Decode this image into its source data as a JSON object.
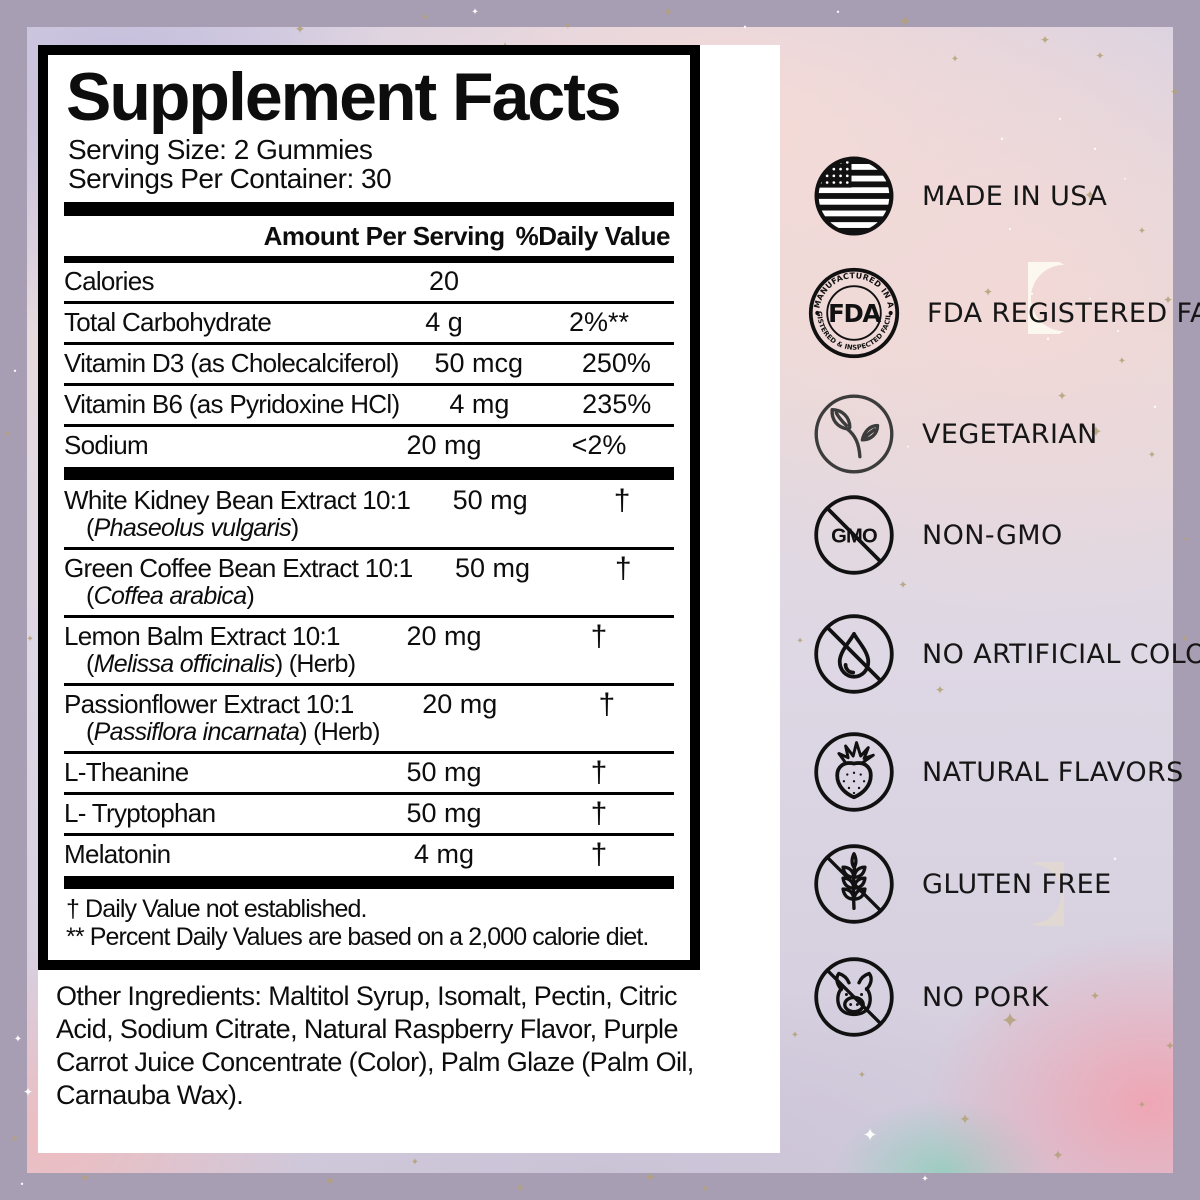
{
  "colors": {
    "frame_border": "#a89eb3",
    "background_lavender": "#d5cfdf",
    "background_pink": "#f5dcda",
    "panel_white": "#ffffff",
    "ink_black": "#0d0d0d",
    "star_gold": "#b3a179"
  },
  "facts": {
    "title": "Supplement Facts",
    "serving_size": "Serving Size: 2 Gummies",
    "servings_per_container": "Servings Per Container: 30",
    "header": {
      "amount": "Amount Per Serving",
      "daily_value": "%Daily Value"
    },
    "sections": [
      {
        "rows": [
          {
            "name": "Calories",
            "amount": "20",
            "dv": ""
          },
          {
            "name": "Total Carbohydrate",
            "amount": "4 g",
            "dv": "2%**"
          },
          {
            "name": "Vitamin D3 (as Cholecalciferol)",
            "amount": "50 mcg",
            "dv": "250%"
          },
          {
            "name": "Vitamin B6 (as Pyridoxine HCl)",
            "amount": "4 mg",
            "dv": "235%"
          },
          {
            "name": "Sodium",
            "amount": "20 mg",
            "dv": "<2%"
          }
        ]
      },
      {
        "rows": [
          {
            "name": "White Kidney Bean Extract 10:1",
            "sub": {
              "open": "(",
              "italic": "Phaseolus vulgaris",
              "close": ")",
              "suffix": ""
            },
            "amount": "50 mg",
            "dv": "†"
          },
          {
            "name": "Green Coffee Bean Extract 10:1",
            "sub": {
              "open": "(",
              "italic": "Coffea arabica",
              "close": ")",
              "suffix": ""
            },
            "amount": "50 mg",
            "dv": "†"
          },
          {
            "name": "Lemon Balm Extract 10:1",
            "sub": {
              "open": "(",
              "italic": "Melissa officinalis",
              "close": ")",
              "suffix": " (Herb)"
            },
            "amount": "20 mg",
            "dv": "†"
          },
          {
            "name": "Passionflower Extract 10:1",
            "sub": {
              "open": "(",
              "italic": "Passiflora incarnata",
              "close": ")",
              "suffix": " (Herb)"
            },
            "amount": "20 mg",
            "dv": "†"
          },
          {
            "name": "L-Theanine",
            "amount": "50 mg",
            "dv": "†"
          },
          {
            "name": "L- Tryptophan",
            "amount": "50 mg",
            "dv": "†"
          },
          {
            "name": "Melatonin",
            "amount": "4 mg",
            "dv": "†"
          }
        ]
      }
    ],
    "footnotes": [
      "† Daily Value not established.",
      "** Percent Daily Values are based on a 2,000 calorie diet."
    ],
    "other_ingredients": "Other Ingredients: Maltitol Syrup, Isomalt, Pectin, Citric Acid, Sodium Citrate, Natural Raspberry Flavor, Purple Carrot Juice Concentrate (Color), Palm Glaze (Palm Oil, Carnauba Wax)."
  },
  "badges": [
    {
      "icon": "usa-flag-icon",
      "label": "MADE IN USA"
    },
    {
      "icon": "fda-seal-icon",
      "label": "FDA REGISTERED FACILITY",
      "seal": {
        "top": "MANUFACTURED IN A",
        "center": "FDA",
        "bottom": "REGISTERED & INSPECTED FACILITY"
      }
    },
    {
      "icon": "leaf-sprig-icon",
      "label": "VEGETARIAN"
    },
    {
      "icon": "gmo-crossed-icon",
      "label": "NON-GMO",
      "icon_text": "GMO"
    },
    {
      "icon": "water-drop-crossed-icon",
      "label": "NO ARTIFICIAL COLORS"
    },
    {
      "icon": "strawberry-icon",
      "label": "NATURAL FLAVORS"
    },
    {
      "icon": "wheat-crossed-icon",
      "label": "GLUTEN FREE"
    },
    {
      "icon": "pig-crossed-icon",
      "label": "NO PORK"
    }
  ],
  "decor": {
    "moon_icon": "crescent-moon-icon",
    "star_icon": "sparkle-star-icon"
  }
}
